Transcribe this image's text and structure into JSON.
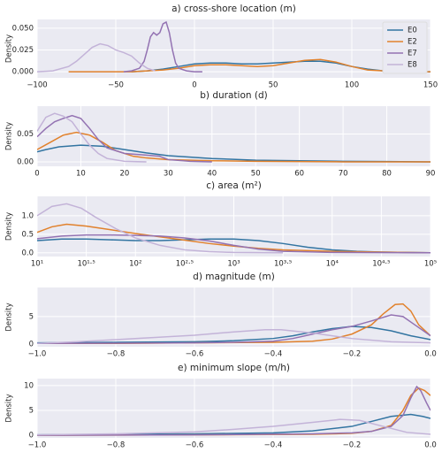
{
  "chart_data": [
    {
      "type": "line",
      "title": "a) cross-shore location (m)",
      "ylabel": "Density",
      "legend": "upper right",
      "grid": true,
      "xlim": [
        -100,
        150
      ],
      "ylim": [
        -0.007,
        0.06
      ],
      "xticks": [
        {
          "value": -100,
          "label": "−100"
        },
        {
          "value": -50,
          "label": "−50"
        },
        0,
        50,
        100,
        150
      ],
      "yticks": [
        {
          "value": 0,
          "label": "0.000"
        },
        {
          "value": 0.025,
          "label": "0.025"
        },
        {
          "value": 0.05,
          "label": "0.050"
        }
      ],
      "series": [
        {
          "name": "E0",
          "color": "#3274a1",
          "x": [
            -40,
            -30,
            -20,
            -10,
            0,
            10,
            20,
            30,
            40,
            50,
            60,
            70,
            80,
            90,
            100,
            110,
            120,
            130,
            140,
            150
          ],
          "values": [
            0,
            0.001,
            0.003,
            0.006,
            0.009,
            0.01,
            0.01,
            0.009,
            0.009,
            0.01,
            0.011,
            0.012,
            0.012,
            0.01,
            0.006,
            0.003,
            0.001,
            0,
            0,
            0
          ]
        },
        {
          "name": "E2",
          "color": "#e1812c",
          "x": [
            -80,
            -70,
            -60,
            -50,
            -40,
            -30,
            -20,
            -10,
            0,
            10,
            20,
            30,
            40,
            50,
            60,
            70,
            80,
            90,
            100,
            110,
            120,
            130,
            140,
            150
          ],
          "values": [
            0,
            0,
            0,
            0,
            0,
            0.001,
            0.002,
            0.004,
            0.007,
            0.008,
            0.008,
            0.007,
            0.006,
            0.007,
            0.01,
            0.013,
            0.014,
            0.011,
            0.006,
            0.002,
            0.001,
            0,
            0,
            0
          ]
        },
        {
          "name": "E7",
          "color": "#9372b2",
          "x": [
            -45,
            -40,
            -35,
            -32,
            -30,
            -28,
            -26,
            -24,
            -22,
            -20,
            -18,
            -16,
            -14,
            -12,
            -10,
            -5,
            0,
            5
          ],
          "values": [
            0,
            0.001,
            0.004,
            0.012,
            0.025,
            0.04,
            0.045,
            0.042,
            0.045,
            0.055,
            0.057,
            0.045,
            0.025,
            0.01,
            0.004,
            0.001,
            0,
            0
          ]
        },
        {
          "name": "E8",
          "color": "#c3b3d8",
          "x": [
            -100,
            -90,
            -80,
            -75,
            -70,
            -65,
            -60,
            -55,
            -50,
            -45,
            -40,
            -35,
            -30,
            -25
          ],
          "values": [
            0,
            0.001,
            0.006,
            0.012,
            0.02,
            0.028,
            0.032,
            0.03,
            0.025,
            0.022,
            0.018,
            0.01,
            0.004,
            0.001
          ]
        }
      ]
    },
    {
      "type": "line",
      "title": "b) duration (d)",
      "ylabel": "Density",
      "grid": true,
      "xlim": [
        0,
        90
      ],
      "ylim": [
        -0.008,
        0.1
      ],
      "xticks": [
        0,
        10,
        20,
        30,
        40,
        50,
        60,
        70,
        80,
        90
      ],
      "yticks": [
        {
          "value": 0,
          "label": "0.00"
        },
        {
          "value": 0.05,
          "label": "0.05"
        }
      ],
      "series": [
        {
          "color": "#3274a1",
          "x": [
            0,
            2,
            5,
            10,
            15,
            20,
            25,
            30,
            40,
            50,
            60,
            70,
            80,
            90
          ],
          "values": [
            0.018,
            0.022,
            0.027,
            0.03,
            0.028,
            0.022,
            0.016,
            0.011,
            0.006,
            0.003,
            0.002,
            0.001,
            0.0005,
            0
          ]
        },
        {
          "color": "#e1812c",
          "x": [
            0,
            3,
            6,
            9,
            12,
            15,
            18,
            22,
            25,
            30,
            40,
            50,
            60,
            70,
            90
          ],
          "values": [
            0.022,
            0.035,
            0.048,
            0.053,
            0.048,
            0.035,
            0.02,
            0.01,
            0.007,
            0.004,
            0.002,
            0.001,
            0.0005,
            0,
            0
          ]
        },
        {
          "color": "#9372b2",
          "x": [
            0,
            2,
            4,
            6,
            8,
            10,
            12,
            14,
            16,
            20,
            25,
            28,
            30,
            35,
            40
          ],
          "values": [
            0.045,
            0.06,
            0.072,
            0.078,
            0.083,
            0.078,
            0.06,
            0.04,
            0.025,
            0.015,
            0.012,
            0.01,
            0.004,
            0.001,
            0
          ]
        },
        {
          "color": "#c3b3d8",
          "x": [
            0,
            2,
            4,
            6,
            8,
            10,
            12,
            14,
            16,
            20,
            25
          ],
          "values": [
            0.055,
            0.08,
            0.087,
            0.082,
            0.072,
            0.05,
            0.03,
            0.015,
            0.006,
            0.001,
            0
          ]
        }
      ]
    },
    {
      "type": "line",
      "title": "c) area (m²)",
      "ylabel": "Density",
      "grid": true,
      "xscale": "log",
      "xlim": [
        10,
        100000
      ],
      "ylim": [
        -0.1,
        1.52
      ],
      "xticks": [
        {
          "value": 10,
          "label": "10¹"
        },
        {
          "value": 31.62,
          "label": "10¹·⁵"
        },
        {
          "value": 100,
          "label": "10²"
        },
        {
          "value": 316.2,
          "label": "10²·⁵"
        },
        {
          "value": 1000,
          "label": "10³"
        },
        {
          "value": 3162,
          "label": "10³·⁵"
        },
        {
          "value": 10000,
          "label": "10⁴"
        },
        {
          "value": 31623,
          "label": "10⁴·⁵"
        },
        {
          "value": 100000,
          "label": "10⁵"
        }
      ],
      "yticks": [
        {
          "value": 0,
          "label": "0.0"
        },
        {
          "value": 0.5,
          "label": "0.5"
        },
        {
          "value": 1,
          "label": "1.0"
        }
      ],
      "series": [
        {
          "color": "#3274a1",
          "x": [
            10,
            17.78,
            31.62,
            56.23,
            100,
            177.8,
            316.2,
            562.3,
            1000,
            1778,
            3162,
            5623,
            10000,
            17783,
            31623,
            100000
          ],
          "values": [
            0.33,
            0.37,
            0.37,
            0.35,
            0.33,
            0.33,
            0.35,
            0.37,
            0.37,
            0.33,
            0.25,
            0.15,
            0.08,
            0.04,
            0.02,
            0
          ]
        },
        {
          "color": "#e1812c",
          "x": [
            10,
            14.13,
            19.95,
            31.62,
            56.23,
            100,
            177.8,
            316.2,
            562.3,
            1000,
            1778,
            3162,
            10000,
            31623,
            100000
          ],
          "values": [
            0.55,
            0.7,
            0.77,
            0.72,
            0.62,
            0.52,
            0.43,
            0.34,
            0.25,
            0.18,
            0.12,
            0.08,
            0.04,
            0.02,
            0
          ]
        },
        {
          "color": "#9372b2",
          "x": [
            10,
            17.78,
            31.62,
            56.23,
            100,
            177.8,
            316.2,
            562.3,
            1000,
            1778,
            3162,
            10000,
            100000
          ],
          "values": [
            0.38,
            0.45,
            0.48,
            0.48,
            0.47,
            0.45,
            0.4,
            0.32,
            0.2,
            0.1,
            0.04,
            0.01,
            0
          ]
        },
        {
          "color": "#c3b3d8",
          "x": [
            10,
            14.13,
            19.95,
            28.18,
            39.81,
            63.1,
            100,
            177.8,
            316.2,
            562.3,
            1000,
            3162
          ],
          "values": [
            1.0,
            1.25,
            1.32,
            1.2,
            0.95,
            0.65,
            0.4,
            0.2,
            0.08,
            0.03,
            0.01,
            0
          ]
        }
      ]
    },
    {
      "type": "line",
      "title": "d) magnitude (m)",
      "ylabel": "Density",
      "grid": true,
      "xlim": [
        -1,
        0
      ],
      "ylim": [
        -0.5,
        10.3
      ],
      "xticks": [
        {
          "value": -1,
          "label": "−1.0"
        },
        {
          "value": -0.8,
          "label": "−0.8"
        },
        {
          "value": -0.6,
          "label": "−0.6"
        },
        {
          "value": -0.4,
          "label": "−0.4"
        },
        {
          "value": -0.2,
          "label": "−0.2"
        },
        {
          "value": 0,
          "label": "0.0"
        }
      ],
      "yticks": [
        0,
        5
      ],
      "series": [
        {
          "color": "#3274a1",
          "x": [
            -1,
            -0.8,
            -0.6,
            -0.5,
            -0.4,
            -0.35,
            -0.3,
            -0.25,
            -0.2,
            -0.15,
            -0.1,
            -0.05,
            0
          ],
          "values": [
            0.2,
            0.3,
            0.4,
            0.6,
            1.0,
            1.5,
            2.2,
            2.8,
            3.2,
            3.0,
            2.4,
            1.5,
            0.8
          ]
        },
        {
          "color": "#e1812c",
          "x": [
            -1,
            -0.8,
            -0.6,
            -0.4,
            -0.3,
            -0.25,
            -0.2,
            -0.15,
            -0.12,
            -0.09,
            -0.07,
            -0.05,
            -0.03,
            0
          ],
          "values": [
            0.1,
            0.1,
            0.2,
            0.3,
            0.5,
            0.9,
            1.8,
            3.5,
            5.5,
            7.2,
            7.3,
            6.0,
            3.5,
            1.5
          ]
        },
        {
          "color": "#9372b2",
          "x": [
            -1,
            -0.8,
            -0.6,
            -0.5,
            -0.4,
            -0.35,
            -0.3,
            -0.25,
            -0.2,
            -0.15,
            -0.1,
            -0.07,
            -0.04,
            0
          ],
          "values": [
            0.1,
            0.15,
            0.2,
            0.3,
            0.5,
            1.0,
            1.8,
            2.6,
            3.2,
            4.2,
            5.3,
            5.0,
            3.5,
            1.5
          ]
        },
        {
          "color": "#c3b3d8",
          "x": [
            -1,
            -0.9,
            -0.8,
            -0.7,
            -0.6,
            -0.5,
            -0.42,
            -0.38,
            -0.3,
            -0.2,
            -0.1,
            0
          ],
          "values": [
            0.1,
            0.4,
            0.8,
            1.2,
            1.6,
            2.2,
            2.6,
            2.6,
            2.0,
            1.0,
            0.4,
            0.2
          ]
        }
      ]
    },
    {
      "type": "line",
      "title": "e) minimum slope (m/h)",
      "ylabel": "Density",
      "grid": true,
      "xlim": [
        -1,
        0
      ],
      "ylim": [
        -0.5,
        11.4
      ],
      "xticks": [
        {
          "value": -1,
          "label": "−1.0"
        },
        {
          "value": -0.8,
          "label": "−0.8"
        },
        {
          "value": -0.6,
          "label": "−0.6"
        },
        {
          "value": -0.4,
          "label": "−0.4"
        },
        {
          "value": -0.2,
          "label": "−0.2"
        },
        {
          "value": 0,
          "label": "0.0"
        }
      ],
      "yticks": [
        0,
        5,
        10
      ],
      "series": [
        {
          "color": "#3274a1",
          "x": [
            -1,
            -0.8,
            -0.6,
            -0.4,
            -0.3,
            -0.2,
            -0.15,
            -0.1,
            -0.05,
            -0.02,
            0
          ],
          "values": [
            0.1,
            0.2,
            0.3,
            0.5,
            0.9,
            1.8,
            2.8,
            3.8,
            4.2,
            3.8,
            3.4
          ]
        },
        {
          "color": "#e1812c",
          "x": [
            -1,
            -0.6,
            -0.3,
            -0.2,
            -0.15,
            -0.1,
            -0.07,
            -0.05,
            -0.03,
            -0.015,
            0
          ],
          "values": [
            0,
            0.1,
            0.2,
            0.4,
            0.8,
            2.0,
            5.0,
            8.0,
            9.5,
            9.0,
            8.0
          ]
        },
        {
          "color": "#9372b2",
          "x": [
            -1,
            -0.6,
            -0.3,
            -0.2,
            -0.15,
            -0.1,
            -0.07,
            -0.05,
            -0.035,
            -0.025,
            -0.01,
            0
          ],
          "values": [
            0,
            0.1,
            0.3,
            0.5,
            0.8,
            1.8,
            4.0,
            7.5,
            9.8,
            9.0,
            6.5,
            5.0
          ]
        },
        {
          "color": "#c3b3d8",
          "x": [
            -1,
            -0.8,
            -0.6,
            -0.5,
            -0.4,
            -0.3,
            -0.23,
            -0.18,
            -0.12,
            -0.06,
            0
          ],
          "values": [
            0.1,
            0.3,
            0.7,
            1.2,
            1.8,
            2.6,
            3.2,
            3.0,
            1.8,
            0.6,
            0.2
          ]
        }
      ]
    }
  ]
}
